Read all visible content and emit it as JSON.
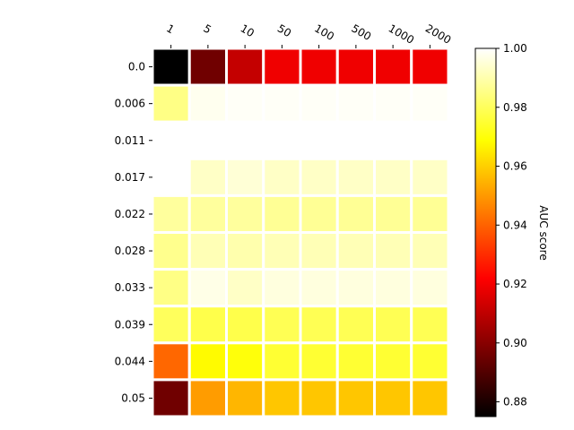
{
  "chart_data": {
    "type": "heatmap",
    "title": "",
    "xlabel": "",
    "ylabel": "",
    "x_categories": [
      "1",
      "5",
      "10",
      "50",
      "100",
      "500",
      "1000",
      "2000"
    ],
    "y_categories": [
      "0.0",
      "0.006",
      "0.011",
      "0.017",
      "0.022",
      "0.028",
      "0.033",
      "0.039",
      "0.044",
      "0.05"
    ],
    "values": [
      [
        0.875,
        0.895,
        0.91,
        0.918,
        0.918,
        0.918,
        0.918,
        0.918
      ],
      [
        0.985,
        0.998,
        0.999,
        0.999,
        0.999,
        0.999,
        0.999,
        0.999
      ],
      [
        1.0,
        1.0,
        1.0,
        1.0,
        1.0,
        1.0,
        1.0,
        1.0
      ],
      [
        1.0,
        0.993,
        0.995,
        0.993,
        0.993,
        0.993,
        0.993,
        0.993
      ],
      [
        0.988,
        0.988,
        0.988,
        0.987,
        0.987,
        0.987,
        0.987,
        0.987
      ],
      [
        0.986,
        0.991,
        0.99,
        0.991,
        0.991,
        0.991,
        0.991,
        0.991
      ],
      [
        0.985,
        0.997,
        0.993,
        0.996,
        0.996,
        0.996,
        0.996,
        0.996
      ],
      [
        0.98,
        0.978,
        0.978,
        0.979,
        0.979,
        0.979,
        0.979,
        0.979
      ],
      [
        0.94,
        0.968,
        0.97,
        0.975,
        0.975,
        0.975,
        0.975,
        0.975
      ],
      [
        0.895,
        0.95,
        0.955,
        0.958,
        0.958,
        0.958,
        0.958,
        0.958
      ]
    ],
    "colorbar": {
      "label": "AUC score",
      "range": [
        0.875,
        1.0
      ],
      "ticks": [
        "0.88",
        "0.90",
        "0.92",
        "0.94",
        "0.96",
        "0.98",
        "1.00"
      ],
      "tick_values": [
        0.88,
        0.9,
        0.92,
        0.94,
        0.96,
        0.98,
        1.0
      ],
      "colormap": "hot"
    },
    "x_axis_position": "top",
    "grid": false
  }
}
